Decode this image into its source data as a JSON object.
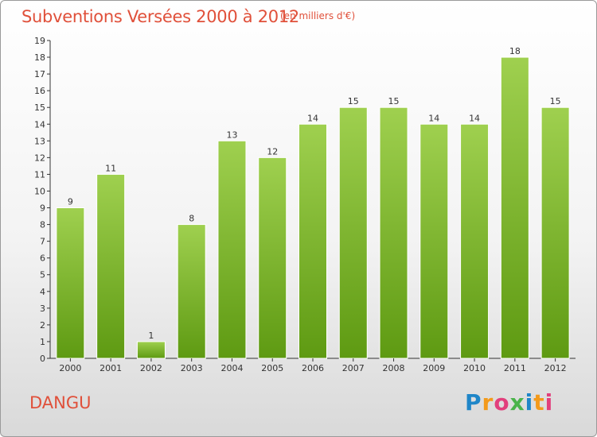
{
  "header": {
    "title": "Subventions Versées 2000 à 2012",
    "subtitle": "(en milliers d'€)"
  },
  "footer": {
    "commune": "DANGU",
    "logo_text": "Proxiti"
  },
  "colors": {
    "title": "#e0503a",
    "bar_top": "#9fd04f",
    "bar_bottom": "#5e9a12"
  },
  "chart_data": {
    "type": "bar",
    "title": "Subventions Versées 2000 à 2012",
    "subtitle": "(en milliers d'€)",
    "categories": [
      "2000",
      "2001",
      "2002",
      "2003",
      "2004",
      "2005",
      "2006",
      "2007",
      "2008",
      "2009",
      "2010",
      "2011",
      "2012"
    ],
    "values": [
      9,
      11,
      1,
      8,
      13,
      12,
      14,
      15,
      15,
      14,
      14,
      18,
      15
    ],
    "ylim": [
      0,
      19
    ],
    "yticks": [
      0,
      1,
      2,
      3,
      4,
      5,
      6,
      7,
      8,
      9,
      10,
      11,
      12,
      13,
      14,
      15,
      16,
      17,
      18,
      19
    ],
    "grid": false,
    "legend": "none"
  }
}
